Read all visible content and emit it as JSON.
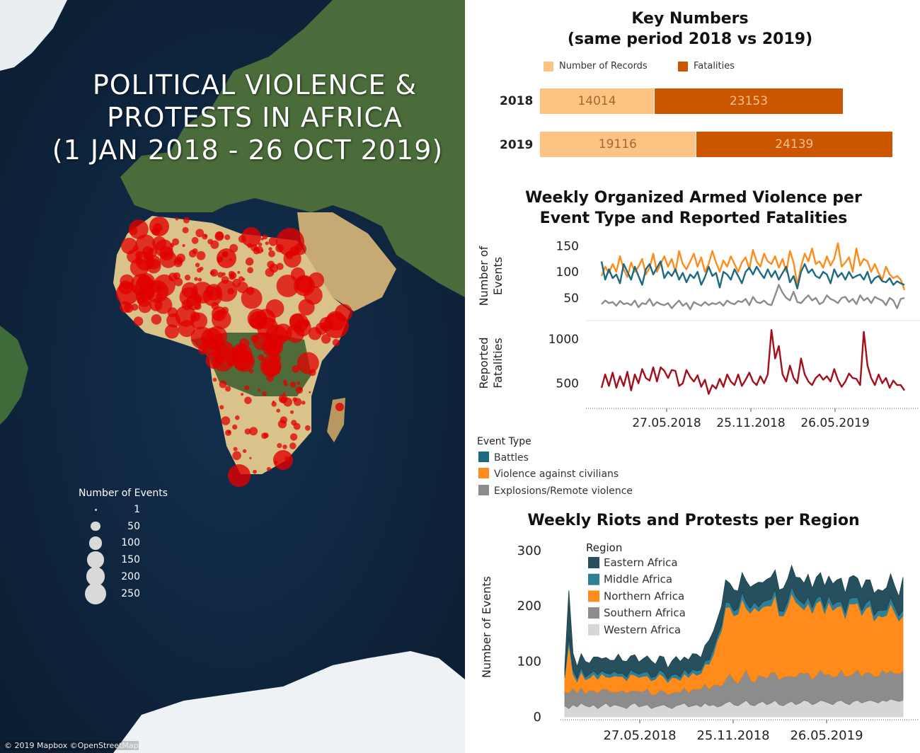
{
  "map": {
    "title_lines": [
      "POLITICAL VIOLENCE &",
      "PROTESTS IN AFRICA",
      "(1 JAN 2018 - 26 OCT 2019)"
    ],
    "legend_title": "Number of Events",
    "legend_items": [
      {
        "label": "1",
        "value": 1
      },
      {
        "label": "50",
        "value": 50
      },
      {
        "label": "100",
        "value": 100
      },
      {
        "label": "150",
        "value": 150
      },
      {
        "label": "200",
        "value": 200
      },
      {
        "label": "250",
        "value": 250
      }
    ],
    "credit": "© 2019 Mapbox ©OpenStreetMap",
    "colors": {
      "ocean": "#0d1f33",
      "event": "#e00000",
      "legend_circle": "#d9d9d9"
    }
  },
  "key_numbers": {
    "title_line1": "Key Numbers",
    "title_line2": "(same period 2018 vs 2019)",
    "legend": [
      {
        "label": "Number of Records",
        "color": "#fdc382"
      },
      {
        "label": "Fatalities",
        "color": "#cc5500"
      }
    ],
    "rows": [
      {
        "year": "2018",
        "records": 14014,
        "fatalities": 23153
      },
      {
        "year": "2019",
        "records": 19116,
        "fatalities": 24139
      }
    ]
  },
  "armed_violence": {
    "title_line1": "Weekly Organized Armed Violence per",
    "title_line2": "Event Type and Reported Fatalities",
    "events_ylabel_line1": "Number of",
    "events_ylabel_line2": "Events",
    "fatalities_ylabel_line1": "Reported",
    "fatalities_ylabel_line2": "Fatalities",
    "legend_title": "Event Type",
    "legend": [
      {
        "label": "Battles",
        "color": "#1c6a80"
      },
      {
        "label": "Violence against civilians",
        "color": "#ff8c1a"
      },
      {
        "label": "Explosions/Remote violence",
        "color": "#8c8c8c"
      }
    ]
  },
  "riots": {
    "title": "Weekly Riots and Protests per Region",
    "ylabel": "Number of Events",
    "legend_title": "Region",
    "legend": [
      {
        "label": "Eastern Africa",
        "color": "#26505e"
      },
      {
        "label": "Middle Africa",
        "color": "#2e8096"
      },
      {
        "label": "Northern Africa",
        "color": "#ff8c1a"
      },
      {
        "label": "Southern Africa",
        "color": "#8c8c8c"
      },
      {
        "label": "Western Africa",
        "color": "#d6d6d6"
      }
    ]
  },
  "chart_data": [
    {
      "type": "bar",
      "title": "Key Numbers (same period 2018 vs 2019)",
      "stacked": true,
      "orientation": "horizontal",
      "categories": [
        "2018",
        "2019"
      ],
      "series": [
        {
          "name": "Number of Records",
          "values": [
            14014,
            19116
          ]
        },
        {
          "name": "Fatalities",
          "values": [
            23153,
            24139
          ]
        }
      ]
    },
    {
      "type": "line",
      "title": "Weekly Organized Armed Violence per Event Type and Reported Fatalities",
      "ylabel": "Number of Events",
      "x_ticks": [
        "27.05.2018",
        "25.11.2018",
        "26.05.2019"
      ],
      "ylim": [
        20,
        160
      ],
      "y_ticks": [
        50,
        100,
        150
      ],
      "series": [
        {
          "name": "Battles",
          "values": [
            120,
            85,
            105,
            88,
            95,
            78,
            115,
            100,
            85,
            110,
            92,
            75,
            105,
            115,
            95,
            108,
            120,
            88,
            100,
            92,
            105,
            85,
            98,
            80,
            95,
            88,
            100,
            75,
            90,
            110,
            92,
            98,
            70,
            100,
            95,
            85,
            105,
            92,
            78,
            100,
            108,
            95,
            110,
            98,
            88,
            105,
            90,
            102,
            85,
            98,
            110,
            80,
            92,
            68,
            100,
            115,
            98,
            105,
            92,
            88,
            100,
            95,
            78,
            105,
            90,
            98,
            85,
            100,
            88,
            92,
            95,
            85,
            100,
            78,
            88,
            92,
            82,
            80,
            88,
            75,
            82,
            78,
            75
          ]
        },
        {
          "name": "Violence against civilians",
          "values": [
            92,
            110,
            98,
            115,
            100,
            130,
            105,
            90,
            118,
            100,
            110,
            125,
            95,
            108,
            135,
            100,
            115,
            130,
            110,
            125,
            100,
            140,
            115,
            105,
            120,
            135,
            110,
            128,
            100,
            115,
            140,
            118,
            100,
            122,
            110,
            130,
            115,
            100,
            118,
            128,
            105,
            142,
            120,
            110,
            135,
            120,
            115,
            130,
            108,
            125,
            100,
            140,
            118,
            75,
            110,
            135,
            120,
            145,
            115,
            120,
            108,
            130,
            112,
            125,
            155,
            110,
            118,
            128,
            100,
            145,
            112,
            125,
            120,
            100,
            115,
            98,
            85,
            110,
            95,
            88,
            92,
            85,
            65
          ]
        },
        {
          "name": "Explosions/Remote violence",
          "values": [
            38,
            45,
            40,
            42,
            35,
            44,
            38,
            40,
            36,
            45,
            32,
            40,
            38,
            48,
            35,
            42,
            38,
            36,
            40,
            30,
            38,
            45,
            35,
            40,
            28,
            42,
            38,
            35,
            42,
            36,
            40,
            38,
            42,
            35,
            45,
            40,
            38,
            44,
            42,
            48,
            36,
            52,
            42,
            40,
            45,
            38,
            36,
            55,
            75,
            60,
            50,
            45,
            62,
            42,
            40,
            48,
            55,
            45,
            50,
            38,
            42,
            55,
            48,
            45,
            40,
            50,
            52,
            42,
            48,
            38,
            55,
            45,
            50,
            40,
            52,
            48,
            45,
            36,
            50,
            45,
            30,
            48,
            50
          ]
        }
      ]
    },
    {
      "type": "line",
      "title": "Reported Fatalities",
      "ylabel": "Reported Fatalities",
      "x_ticks": [
        "27.05.2018",
        "25.11.2018",
        "26.05.2019"
      ],
      "ylim": [
        250,
        1150
      ],
      "y_ticks": [
        500,
        1000
      ],
      "series": [
        {
          "name": "Reported Fatalities",
          "values": [
            450,
            600,
            470,
            620,
            450,
            580,
            470,
            630,
            420,
            600,
            500,
            660,
            560,
            530,
            680,
            520,
            680,
            640,
            560,
            650,
            640,
            470,
            500,
            650,
            570,
            520,
            590,
            460,
            540,
            380,
            480,
            440,
            550,
            460,
            600,
            520,
            480,
            600,
            470,
            540,
            620,
            520,
            480,
            580,
            500,
            600,
            1100,
            780,
            920,
            600,
            520,
            700,
            560,
            500,
            780,
            600,
            520,
            480,
            560,
            600,
            540,
            580,
            520,
            660,
            540,
            460,
            520,
            610,
            560,
            550,
            480,
            1080,
            700,
            560,
            480,
            600,
            500,
            560,
            450,
            530,
            480,
            480,
            420
          ]
        }
      ]
    },
    {
      "type": "area",
      "title": "Weekly Riots and Protests per Region",
      "ylabel": "Number of Events",
      "stacked": true,
      "x_ticks": [
        "27.05.2018",
        "25.11.2018",
        "26.05.2019"
      ],
      "ylim": [
        0,
        310
      ],
      "y_ticks": [
        0,
        100,
        200,
        300
      ],
      "series": [
        {
          "name": "Western Africa",
          "values": [
            20,
            15,
            22,
            18,
            25,
            20,
            18,
            22,
            15,
            20,
            25,
            18,
            22,
            20,
            18,
            15,
            22,
            25,
            18,
            20,
            22,
            15,
            18,
            20,
            22,
            18,
            15,
            20,
            22,
            25,
            18,
            20,
            22,
            18,
            25,
            20,
            22,
            18,
            20,
            25,
            28,
            22,
            20,
            25,
            30,
            22,
            20,
            25,
            28,
            22,
            25,
            30,
            22,
            20,
            25,
            28,
            22,
            25,
            30,
            28,
            22,
            25,
            30,
            28,
            25,
            22,
            28,
            30,
            25,
            22,
            28,
            30,
            25,
            28,
            30,
            28,
            25,
            30,
            28,
            32,
            30,
            28,
            30
          ]
        },
        {
          "name": "Southern Africa",
          "values": [
            25,
            28,
            30,
            25,
            28,
            22,
            30,
            25,
            28,
            30,
            25,
            28,
            22,
            25,
            30,
            28,
            25,
            22,
            28,
            25,
            30,
            25,
            22,
            28,
            25,
            22,
            28,
            25,
            22,
            28,
            25,
            30,
            28,
            32,
            35,
            30,
            35,
            40,
            35,
            42,
            50,
            45,
            40,
            48,
            55,
            45,
            42,
            50,
            45,
            48,
            55,
            50,
            45,
            52,
            48,
            45,
            50,
            55,
            48,
            52,
            45,
            50,
            55,
            48,
            52,
            50,
            45,
            55,
            48,
            52,
            50,
            55,
            48,
            52,
            50,
            45,
            48,
            55,
            50,
            52,
            48,
            50,
            52
          ]
        },
        {
          "name": "Northern Africa",
          "values": [
            25,
            90,
            25,
            20,
            28,
            25,
            22,
            30,
            25,
            28,
            22,
            25,
            30,
            28,
            25,
            22,
            30,
            28,
            25,
            28,
            22,
            25,
            28,
            30,
            25,
            22,
            28,
            25,
            22,
            25,
            28,
            30,
            25,
            28,
            35,
            45,
            55,
            80,
            100,
            130,
            120,
            115,
            125,
            140,
            110,
            120,
            135,
            115,
            125,
            130,
            120,
            140,
            115,
            110,
            125,
            150,
            135,
            120,
            115,
            125,
            120,
            130,
            125,
            110,
            130,
            120,
            125,
            115,
            105,
            130,
            125,
            120,
            110,
            115,
            120,
            100,
            110,
            95,
            105,
            120,
            110,
            95,
            100
          ]
        },
        {
          "name": "Middle Africa",
          "values": [
            5,
            10,
            8,
            6,
            8,
            5,
            7,
            6,
            8,
            5,
            7,
            6,
            8,
            5,
            6,
            7,
            8,
            5,
            6,
            7,
            8,
            6,
            5,
            7,
            8,
            6,
            5,
            7,
            6,
            8,
            7,
            6,
            8,
            7,
            6,
            8,
            10,
            8,
            9,
            10,
            8,
            9,
            10,
            12,
            10,
            9,
            10,
            8,
            9,
            10,
            12,
            10,
            9,
            8,
            10,
            12,
            10,
            9,
            10,
            12,
            10,
            9,
            8,
            10,
            12,
            10,
            9,
            8,
            10,
            9,
            12,
            10,
            9,
            10,
            12,
            10,
            9,
            12,
            10,
            12,
            10,
            9,
            10
          ]
        },
        {
          "name": "Eastern Africa",
          "values": [
            15,
            85,
            30,
            22,
            25,
            28,
            20,
            25,
            32,
            22,
            28,
            25,
            20,
            35,
            22,
            28,
            25,
            32,
            22,
            25,
            28,
            30,
            22,
            25,
            28,
            20,
            25,
            32,
            28,
            22,
            25,
            28,
            30,
            22,
            28,
            35,
            32,
            30,
            35,
            40,
            35,
            38,
            32,
            35,
            40,
            38,
            32,
            45,
            35,
            38,
            40,
            35,
            38,
            42,
            40,
            38,
            35,
            42,
            38,
            40,
            35,
            38,
            42,
            40,
            35,
            38,
            40,
            42,
            35,
            38,
            40,
            35,
            38,
            42,
            35,
            40,
            38,
            35,
            40,
            42,
            38,
            35,
            60
          ]
        }
      ]
    }
  ]
}
